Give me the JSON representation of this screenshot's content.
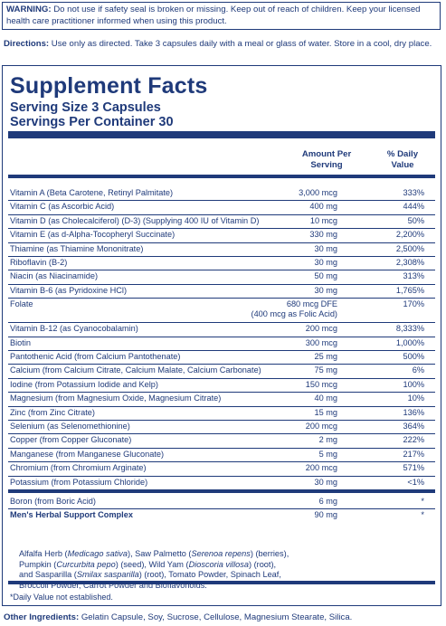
{
  "warning": {
    "label": "WARNING:",
    "text": " Do not use if safety seal is broken or missing. Keep out of reach of children. Keep your licensed health care practitioner informed when using this product."
  },
  "directions": {
    "label": "Directions:",
    "text": " Use only as directed. Take 3 capsules daily with a meal or glass of water. Store in a cool, dry place."
  },
  "facts": {
    "title": "Supplement Facts",
    "serving_size": "Serving Size 3 Capsules",
    "servings_per_container": "Servings Per Container 30",
    "col_amount": [
      "Amount Per",
      "Serving"
    ],
    "col_dv": [
      "% Daily",
      "Value"
    ],
    "rows": [
      {
        "name": "Vitamin A (Beta Carotene, Retinyl Palmitate)",
        "amount": "3,000 mcg",
        "dv": "333%"
      },
      {
        "name": "Vitamin C (as Ascorbic Acid)",
        "amount": "400 mg",
        "dv": "444%"
      },
      {
        "name": "Vitamin D (as Cholecalciferol) (D-3) (Supplying 400 IU of Vitamin D)",
        "amount": "10 mcg",
        "dv": "50%"
      },
      {
        "name": "Vitamin E (as d-Alpha-Tocopheryl Succinate)",
        "amount": "330 mg",
        "dv": "2,200%"
      },
      {
        "name": "Thiamine (as Thiamine Mononitrate)",
        "amount": "30 mg",
        "dv": "2,500%"
      },
      {
        "name": "Riboflavin (B-2)",
        "amount": "30 mg",
        "dv": "2,308%"
      },
      {
        "name": "Niacin (as Niacinamide)",
        "amount": "50 mg",
        "dv": "313%"
      },
      {
        "name": "Vitamin B-6 (as Pyridoxine HCl)",
        "amount": "30 mg",
        "dv": "1,765%"
      },
      {
        "name": "Folate",
        "amount": "680 mcg DFE",
        "sub": "(400 mcg as Folic Acid)",
        "dv": "170%"
      },
      {
        "name": "Vitamin B-12 (as Cyanocobalamin)",
        "amount": "200 mcg",
        "dv": "8,333%"
      },
      {
        "name": "Biotin",
        "amount": "300 mcg",
        "dv": "1,000%"
      },
      {
        "name": "Pantothenic Acid (from Calcium Pantothenate)",
        "amount": "25 mg",
        "dv": "500%"
      },
      {
        "name": "Calcium (from Calcium Citrate, Calcium Malate, Calcium Carbonate)",
        "amount": "75 mg",
        "dv": "6%"
      },
      {
        "name": "Iodine (from Potassium Iodide and Kelp)",
        "amount": "150 mcg",
        "dv": "100%"
      },
      {
        "name": "Magnesium (from Magnesium Oxide, Magnesium Citrate)",
        "amount": "40 mg",
        "dv": "10%"
      },
      {
        "name": "Zinc (from Zinc Citrate)",
        "amount": "15 mg",
        "dv": "136%"
      },
      {
        "name": "Selenium (as Selenomethionine)",
        "amount": "200 mcg",
        "dv": "364%"
      },
      {
        "name": "Copper (from Copper Gluconate)",
        "amount": "2 mg",
        "dv": "222%"
      },
      {
        "name": "Manganese (from Manganese Gluconate)",
        "amount": "5 mg",
        "dv": "217%"
      },
      {
        "name": "Chromium (from Chromium Arginate)",
        "amount": "200 mcg",
        "dv": "571%"
      },
      {
        "name": "Potassium (from Potassium Chloride)",
        "amount": "30 mg",
        "dv": "<1%"
      },
      {
        "name": "Boron (from Boric Acid)",
        "amount": "6 mg",
        "dv": "*"
      },
      {
        "name": "Men's Herbal Support Complex",
        "amount": "90 mg",
        "dv": "*"
      }
    ],
    "herbal_ingredients": "Alfalfa Herb (Medicago sativa), Saw Palmetto (Serenoa repens) (berries), Pumpkin (Curcurbita pepo) (seed), Wild Yam (Dioscoria villosa) (root), and Sasparilla (Smilax sasparilla) (root), Tomato Powder, Spinach Leaf, Broccoli Powder, Carrot Powder and Bioflavonoids.",
    "footnote": "*Daily Value not established."
  },
  "other_ingredients": {
    "label": "Other Ingredients:",
    "text": " Gelatin Capsule, Soy, Sucrose, Cellulose, Magnesium Stearate, Silica."
  }
}
